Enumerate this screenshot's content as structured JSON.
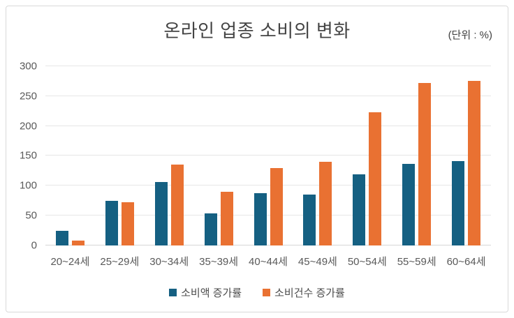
{
  "header": {
    "title": "온라인 업종 소비의 변화",
    "unit_label": "(단위 : %)"
  },
  "colors": {
    "series_blue": "#156082",
    "series_orange": "#E97132",
    "title_text": "#444444",
    "axis_text": "#595959",
    "gridline": "#e6e6e6",
    "frame_border": "#d9d9d9",
    "background": "#ffffff"
  },
  "chart_data": {
    "type": "bar",
    "title": "온라인 업종 소비의 변화",
    "unit": "(단위 : %)",
    "categories": [
      "20~24세",
      "25~29세",
      "30~34세",
      "35~39세",
      "40~44세",
      "45~49세",
      "50~54세",
      "55~59세",
      "60~64세"
    ],
    "series": [
      {
        "name": "소비액 증가률",
        "color": "#156082",
        "values": [
          25,
          75,
          106,
          54,
          88,
          85,
          119,
          137,
          141
        ]
      },
      {
        "name": "소비건수 증가률",
        "color": "#E97132",
        "values": [
          8,
          72,
          135,
          90,
          130,
          140,
          223,
          272,
          275
        ]
      }
    ],
    "xlabel": "",
    "ylabel": "",
    "ylim": [
      0,
      300
    ],
    "yticks": [
      0,
      50,
      100,
      150,
      200,
      250,
      300
    ],
    "grid": true,
    "legend_position": "bottom"
  }
}
